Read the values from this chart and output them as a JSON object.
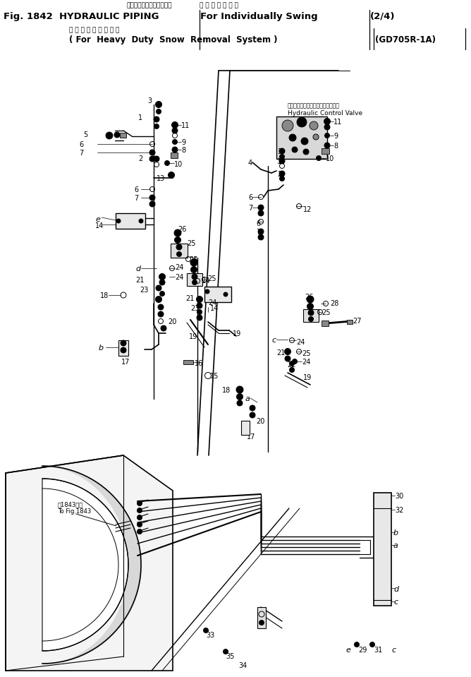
{
  "bg_color": "#ffffff",
  "title": {
    "jp1": "ハイドロリックパイピング",
    "jp1_right": "左 右 単 独 開 閉 用",
    "en1_left": "Fig. 1842  HYDRAULIC PIPING",
    "en1_mid": "For Individually Swing",
    "en1_right": "(2/4)",
    "jp2": "（ 圧 雪 処 理 装 置 用 ）",
    "en2": "( For  Heavy  Duty  Snow  Removal  System )",
    "en2_right": "(GD705R-1A)"
  },
  "valve_label_jp": "ハイドロリックコントロールバルブ",
  "valve_label_en": "Hydraulic Control Valve",
  "to_fig_jp": "第1843図へ",
  "to_fig_en": "To Fig.1843"
}
